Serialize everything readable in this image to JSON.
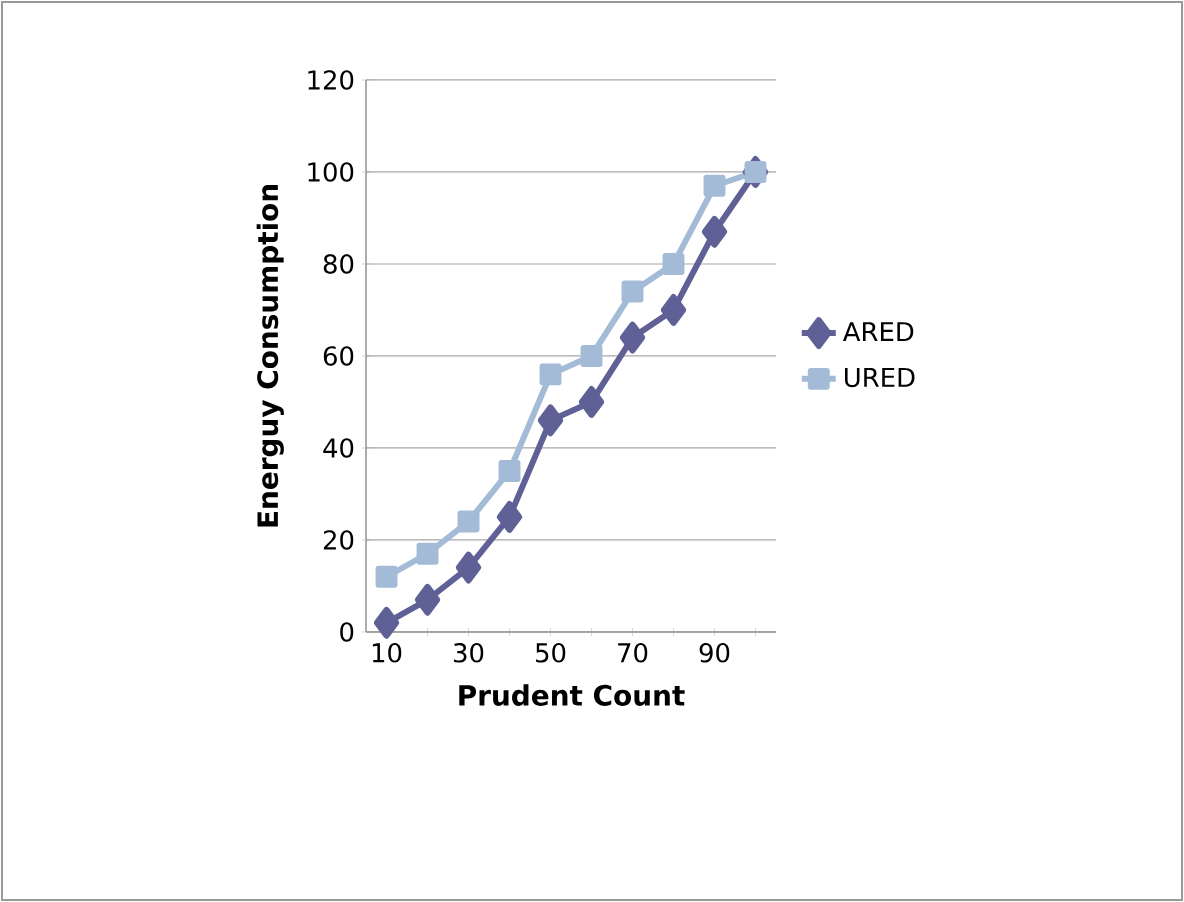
{
  "chart_data": {
    "type": "line",
    "xlabel": "Prudent Count",
    "ylabel": "Energuy Consumption",
    "categories": [
      "10",
      null,
      "30",
      null,
      "50",
      null,
      "70",
      null,
      "90",
      null
    ],
    "series": [
      {
        "name": "ARED",
        "color": "#5e6096",
        "marker": "diamond",
        "values": [
          2,
          7,
          14,
          25,
          46,
          50,
          64,
          70,
          87,
          100
        ]
      },
      {
        "name": "URED",
        "color": "#a3bbd6",
        "marker": "square",
        "values": [
          12,
          17,
          24,
          35,
          56,
          60,
          74,
          80,
          97,
          100
        ]
      }
    ],
    "ylim": [
      0,
      120
    ],
    "yticks": [
      0,
      20,
      40,
      60,
      80,
      100,
      120
    ],
    "grid": "y",
    "legend": "right"
  }
}
